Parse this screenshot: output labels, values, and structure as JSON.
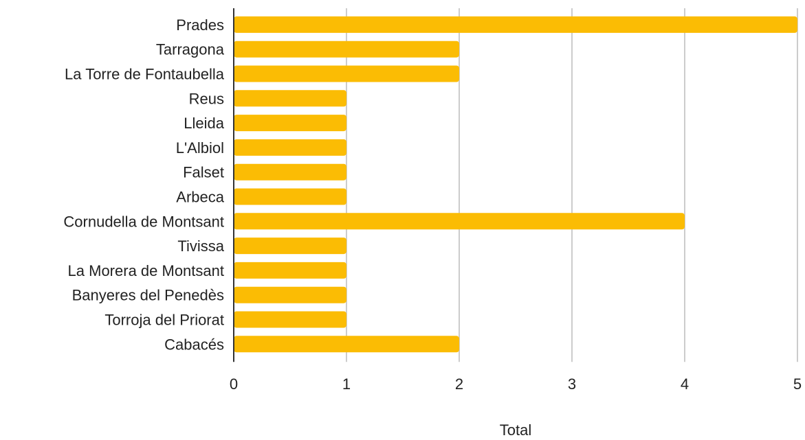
{
  "chart_data": {
    "type": "bar",
    "orientation": "horizontal",
    "categories": [
      "Prades",
      "Tarragona",
      "La Torre de Fontaubella",
      "Reus",
      "Lleida",
      "L'Albiol",
      "Falset",
      "Arbeca",
      "Cornudella de Montsant",
      "Tivissa",
      "La Morera de Montsant",
      "Banyeres del Penedès",
      "Torroja del Priorat",
      "Cabacés"
    ],
    "values": [
      5,
      2,
      2,
      1,
      1,
      1,
      1,
      1,
      4,
      1,
      1,
      1,
      1,
      2
    ],
    "title": "",
    "xlabel": "Total",
    "ylabel": "",
    "xlim": [
      0,
      5
    ],
    "xticks": [
      0,
      1,
      2,
      3,
      4,
      5
    ],
    "grid": true,
    "legend": "none",
    "colors": {
      "bar": "#fbbc04",
      "grid": "#cccccc",
      "axis": "#333333"
    }
  }
}
